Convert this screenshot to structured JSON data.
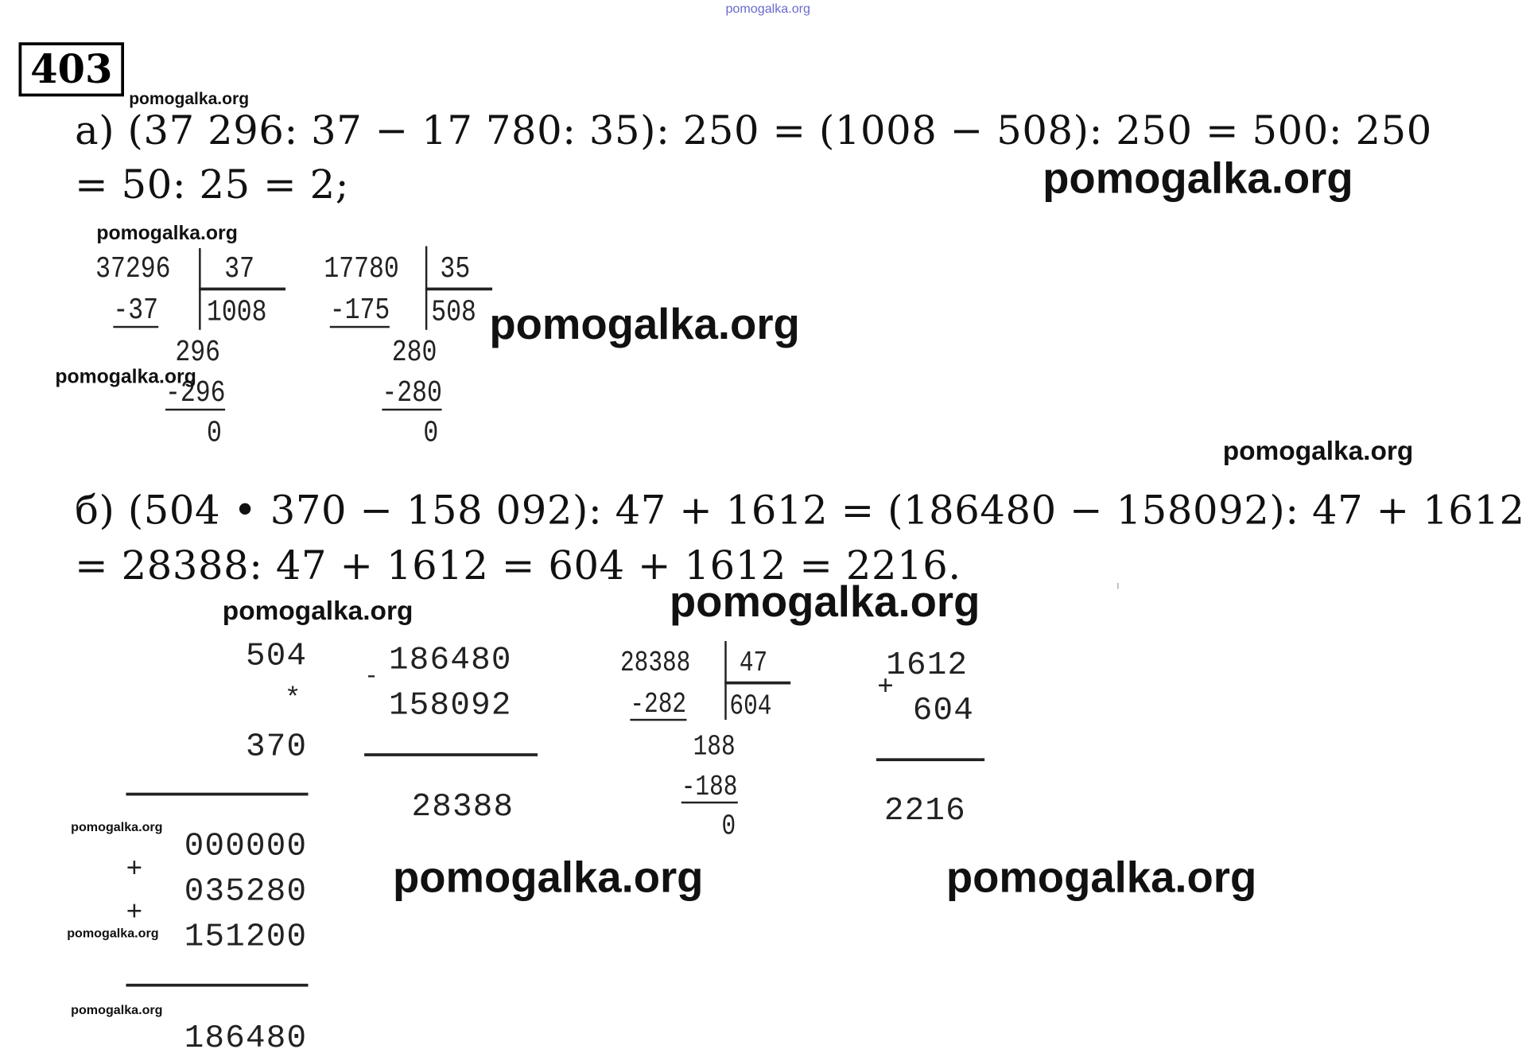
{
  "top_watermark": "pomogalka.org",
  "problem_number": "403",
  "watermarks": [
    "pomogalka.org",
    "pomogalka.org",
    "pomogalka.org",
    "pomogalka.org",
    "pomogalka.org",
    "pomogalka.org",
    "pomogalka.org",
    "pomogalka.org",
    "pomogalka.org",
    "pomogalka.org",
    "pomogalka.org",
    "pomogalka.org",
    "pomogalka.org"
  ],
  "part_a": {
    "line1": "а) (37 296: 37 − 17 780: 35): 250 = (1008 − 508): 250 = 500: 250",
    "line2": "= 50: 25 = 2;",
    "division1": {
      "dividend": "37296",
      "divisor": "37",
      "quotient": "1008",
      "step1": "-37",
      "rem1": "296",
      "step2": "-296",
      "rem2": "0"
    },
    "division2": {
      "dividend": "17780",
      "divisor": "35",
      "quotient": "508",
      "step1": "-175",
      "rem1": "280",
      "step2": "-280",
      "rem2": "0"
    }
  },
  "part_b": {
    "line1": "б) (504 • 370 − 158 092): 47 + 1612 = (186480 − 158092): 47 + 1612",
    "line2": "= 28388: 47 + 1612 = 604 + 1612 = 2216.",
    "multiplication": {
      "a": "504",
      "op": "*",
      "b": "370",
      "p1": "000000",
      "plus1": "+",
      "p2": "035280",
      "plus2": "+",
      "p3": "151200",
      "result": "186480"
    },
    "subtraction": {
      "op": "-",
      "a": "186480",
      "b": "158092",
      "result": "28388"
    },
    "division": {
      "dividend": "28388",
      "divisor": "47",
      "quotient": "604",
      "step1": "-282",
      "rem1": "188",
      "step2": "-188",
      "rem2": "0"
    },
    "addition": {
      "op": "+",
      "a": "1612",
      "b": "604",
      "result": "2216"
    }
  }
}
